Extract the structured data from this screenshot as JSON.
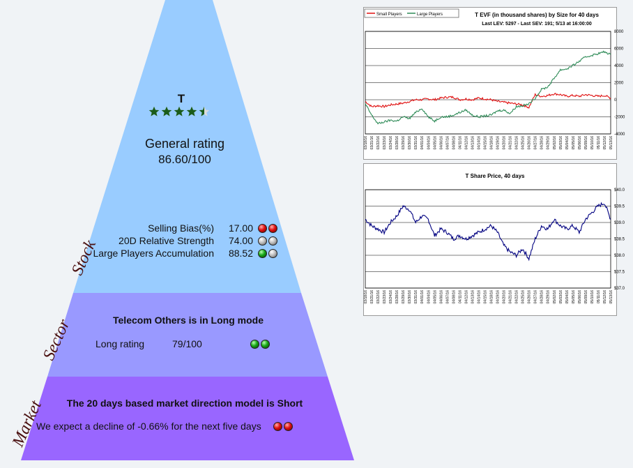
{
  "stock": {
    "ticker": "T",
    "star_rating": 4.5,
    "general_rating_label": "General rating",
    "general_rating_value": "86.60/100",
    "metrics": [
      {
        "label": "Selling Bias(%)",
        "value": "17.00",
        "dots": [
          "red",
          "red"
        ]
      },
      {
        "label": "20D Relative Strength",
        "value": "74.00",
        "dots": [
          "grey",
          "grey"
        ]
      },
      {
        "label": "Large Players Accumulation",
        "value": "88.52",
        "dots": [
          "green",
          "grey"
        ]
      }
    ]
  },
  "sector": {
    "title": "Telecom Others is in Long mode",
    "rating_label": "Long rating",
    "rating_value": "79/100",
    "dots": [
      "green",
      "green"
    ]
  },
  "market": {
    "title": "The 20 days based market direction model is Short",
    "text": "We expect a decline of -0.66% for the next five days",
    "dots": [
      "red",
      "red"
    ]
  },
  "labels": {
    "stock": "Stock",
    "sector": "Sector",
    "market": "Market"
  },
  "colors": {
    "stock_tier": "#99ccff",
    "sector_tier": "#9999ff",
    "market_tier": "#9966ff",
    "star": "#1a5c1a",
    "small_players": "#e01010",
    "large_players": "#2e8b57",
    "price_line": "#000080"
  },
  "chart_data": [
    {
      "type": "line",
      "title": "T EVF (in thousand shares) by Size for 40 days",
      "subtitle": "Last LEV: 5297  - Last SEV: 191; 5/13 at 16:00:00",
      "legend": [
        "Small Players",
        "Large Players"
      ],
      "legend_position": "top-left",
      "ylim": [
        -4000,
        8000
      ],
      "yticks": [
        "8000",
        "6000",
        "4000",
        "2000",
        "0",
        "-2000",
        "-4000"
      ],
      "x": [
        "03/18/16",
        "03/21/16",
        "03/22/16",
        "03/23/16",
        "03/24/16",
        "03/28/16",
        "03/29/16",
        "03/30/16",
        "03/31/16",
        "04/01/16",
        "04/04/16",
        "04/05/16",
        "04/06/16",
        "04/07/16",
        "04/08/16",
        "04/11/16",
        "04/12/16",
        "04/13/16",
        "04/14/16",
        "04/15/16",
        "04/18/16",
        "04/19/16",
        "04/20/16",
        "04/21/16",
        "04/22/16",
        "04/25/16",
        "04/26/16",
        "04/27/16",
        "04/28/16",
        "04/29/16",
        "05/02/16",
        "05/03/16",
        "05/04/16",
        "05/05/16",
        "05/06/16",
        "05/09/16",
        "05/10/16",
        "05/11/16",
        "05/12/16",
        "05/13/16"
      ],
      "series": [
        {
          "name": "Small Players",
          "values": [
            -200,
            -800,
            -700,
            -800,
            -600,
            -500,
            -400,
            -200,
            0,
            0,
            100,
            0,
            200,
            300,
            300,
            0,
            100,
            0,
            200,
            100,
            0,
            -200,
            -300,
            -400,
            -500,
            -600,
            -900,
            600,
            400,
            500,
            700,
            600,
            400,
            500,
            400,
            600,
            500,
            400,
            500,
            200
          ]
        },
        {
          "name": "Large Players",
          "values": [
            -500,
            -1800,
            -2800,
            -2600,
            -2400,
            -2500,
            -2000,
            -2200,
            -1500,
            -1000,
            -2000,
            -2500,
            -2000,
            -2000,
            -1800,
            -1500,
            -1200,
            -1800,
            -2000,
            -1900,
            -1800,
            -1300,
            -1200,
            -1600,
            -800,
            -700,
            -500,
            200,
            1200,
            1500,
            2500,
            3500,
            3600,
            4000,
            4500,
            5000,
            5200,
            5400,
            5600,
            5300
          ]
        }
      ]
    },
    {
      "type": "line",
      "title": "T Share Price, 40 days",
      "ylim": [
        37.0,
        40.0
      ],
      "yticks": [
        "$40.0",
        "$39.5",
        "$39.0",
        "$38.5",
        "$38.0",
        "$37.5",
        "$37.0"
      ],
      "x": [
        "03/18/16",
        "03/21/16",
        "03/22/16",
        "03/23/16",
        "03/24/16",
        "03/28/16",
        "03/29/16",
        "03/30/16",
        "03/31/16",
        "04/01/16",
        "04/04/16",
        "04/05/16",
        "04/06/16",
        "04/07/16",
        "04/08/16",
        "04/11/16",
        "04/12/16",
        "04/13/16",
        "04/14/16",
        "04/15/16",
        "04/18/16",
        "04/19/16",
        "04/20/16",
        "04/21/16",
        "04/22/16",
        "04/25/16",
        "04/26/16",
        "04/27/16",
        "04/28/16",
        "04/29/16",
        "05/02/16",
        "05/03/16",
        "05/04/16",
        "05/05/16",
        "05/06/16",
        "05/09/16",
        "05/10/16",
        "05/11/16",
        "05/12/16",
        "05/13/16"
      ],
      "series": [
        {
          "name": "T",
          "values": [
            39.1,
            38.9,
            38.8,
            38.7,
            39.0,
            39.2,
            39.5,
            39.4,
            39.0,
            39.2,
            39.1,
            38.6,
            38.8,
            38.7,
            38.5,
            38.6,
            38.5,
            38.6,
            38.7,
            38.8,
            38.9,
            38.7,
            38.3,
            38.1,
            38.0,
            38.2,
            37.9,
            38.5,
            38.9,
            38.8,
            39.1,
            38.9,
            38.8,
            38.9,
            38.7,
            39.1,
            39.3,
            39.5,
            39.6,
            39.1
          ]
        }
      ]
    }
  ]
}
